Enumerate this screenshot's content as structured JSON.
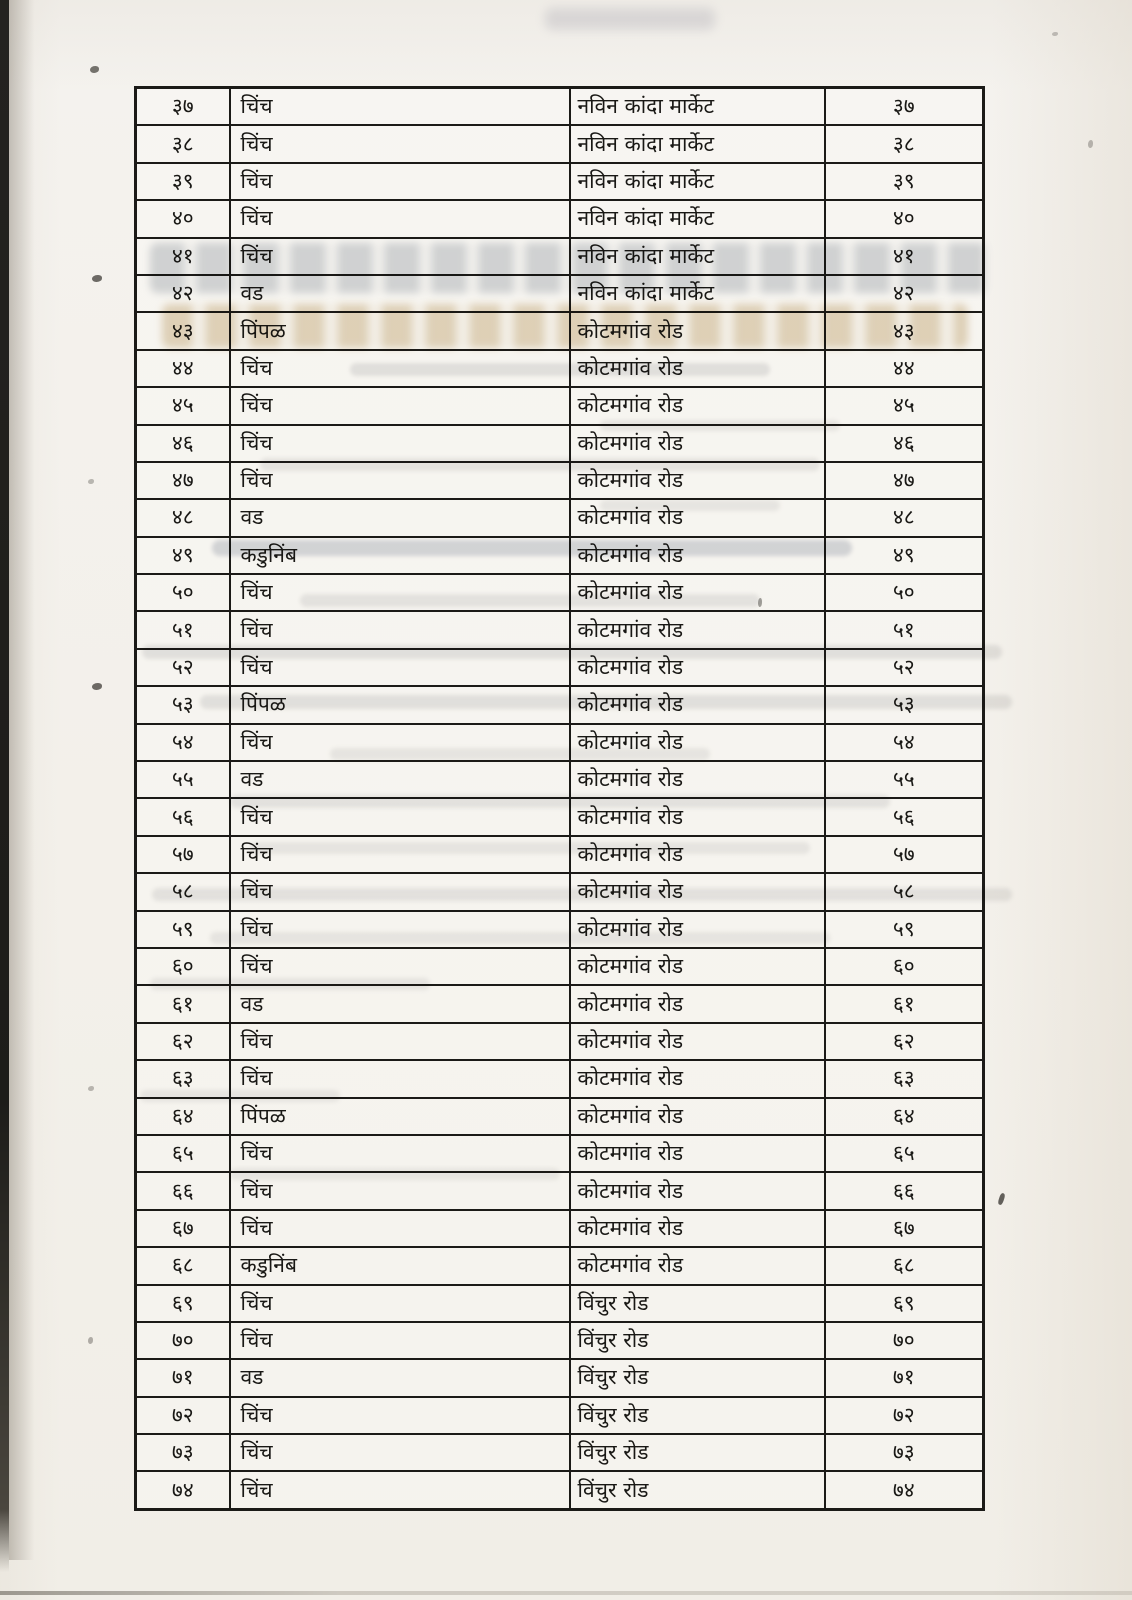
{
  "table": {
    "rows": [
      {
        "sr": "३७",
        "tree": "चिंच",
        "location": "नविन कांदा मार्केट",
        "sr2": "३७"
      },
      {
        "sr": "३८",
        "tree": "चिंच",
        "location": "नविन कांदा मार्केट",
        "sr2": "३८"
      },
      {
        "sr": "३९",
        "tree": "चिंच",
        "location": "नविन कांदा मार्केट",
        "sr2": "३९"
      },
      {
        "sr": "४०",
        "tree": "चिंच",
        "location": "नविन कांदा मार्केट",
        "sr2": "४०"
      },
      {
        "sr": "४१",
        "tree": "चिंच",
        "location": "नविन कांदा मार्केट",
        "sr2": "४१"
      },
      {
        "sr": "४२",
        "tree": "वड",
        "location": "नविन कांदा मार्केट",
        "sr2": "४२"
      },
      {
        "sr": "४३",
        "tree": "पिंपळ",
        "location": "कोटमगांव रोड",
        "sr2": "४३"
      },
      {
        "sr": "४४",
        "tree": "चिंच",
        "location": "कोटमगांव रोड",
        "sr2": "४४"
      },
      {
        "sr": "४५",
        "tree": "चिंच",
        "location": "कोटमगांव रोड",
        "sr2": "४५"
      },
      {
        "sr": "४६",
        "tree": "चिंच",
        "location": "कोटमगांव रोड",
        "sr2": "४६"
      },
      {
        "sr": "४७",
        "tree": "चिंच",
        "location": "कोटमगांव रोड",
        "sr2": "४७"
      },
      {
        "sr": "४८",
        "tree": "वड",
        "location": "कोटमगांव रोड",
        "sr2": "४८"
      },
      {
        "sr": "४९",
        "tree": "कडुनिंब",
        "location": "कोटमगांव रोड",
        "sr2": "४९"
      },
      {
        "sr": "५०",
        "tree": "चिंच",
        "location": "कोटमगांव रोड",
        "sr2": "५०"
      },
      {
        "sr": "५१",
        "tree": "चिंच",
        "location": "कोटमगांव रोड",
        "sr2": "५१"
      },
      {
        "sr": "५२",
        "tree": "चिंच",
        "location": "कोटमगांव रोड",
        "sr2": "५२"
      },
      {
        "sr": "५३",
        "tree": "पिंपळ",
        "location": "कोटमगांव रोड",
        "sr2": "५३"
      },
      {
        "sr": "५४",
        "tree": "चिंच",
        "location": "कोटमगांव रोड",
        "sr2": "५४"
      },
      {
        "sr": "५५",
        "tree": "वड",
        "location": "कोटमगांव रोड",
        "sr2": "५५"
      },
      {
        "sr": "५६",
        "tree": "चिंच",
        "location": "कोटमगांव रोड",
        "sr2": "५६"
      },
      {
        "sr": "५७",
        "tree": "चिंच",
        "location": "कोटमगांव रोड",
        "sr2": "५७"
      },
      {
        "sr": "५८",
        "tree": "चिंच",
        "location": "कोटमगांव रोड",
        "sr2": "५८"
      },
      {
        "sr": "५९",
        "tree": "चिंच",
        "location": "कोटमगांव रोड",
        "sr2": "५९"
      },
      {
        "sr": "६०",
        "tree": "चिंच",
        "location": "कोटमगांव रोड",
        "sr2": "६०"
      },
      {
        "sr": "६१",
        "tree": "वड",
        "location": "कोटमगांव रोड",
        "sr2": "६१"
      },
      {
        "sr": "६२",
        "tree": "चिंच",
        "location": "कोटमगांव रोड",
        "sr2": "६२"
      },
      {
        "sr": "६३",
        "tree": "चिंच",
        "location": "कोटमगांव रोड",
        "sr2": "६३"
      },
      {
        "sr": "६४",
        "tree": "पिंपळ",
        "location": "कोटमगांव रोड",
        "sr2": "६४"
      },
      {
        "sr": "६५",
        "tree": "चिंच",
        "location": "कोटमगांव रोड",
        "sr2": "६५"
      },
      {
        "sr": "६६",
        "tree": "चिंच",
        "location": "कोटमगांव रोड",
        "sr2": "६६"
      },
      {
        "sr": "६७",
        "tree": "चिंच",
        "location": "कोटमगांव रोड",
        "sr2": "६७"
      },
      {
        "sr": "६८",
        "tree": "कडुनिंब",
        "location": "कोटमगांव रोड",
        "sr2": "६८"
      },
      {
        "sr": "६९",
        "tree": "चिंच",
        "location": "विंचुर रोड",
        "sr2": "६९"
      },
      {
        "sr": "७०",
        "tree": "चिंच",
        "location": "विंचुर रोड",
        "sr2": "७०"
      },
      {
        "sr": "७१",
        "tree": "वड",
        "location": "विंचुर रोड",
        "sr2": "७१"
      },
      {
        "sr": "७२",
        "tree": "चिंच",
        "location": "विंचुर रोड",
        "sr2": "७२"
      },
      {
        "sr": "७३",
        "tree": "चिंच",
        "location": "विंचुर रोड",
        "sr2": "७३"
      },
      {
        "sr": "७४",
        "tree": "चिंच",
        "location": "विंचुर रोड",
        "sr2": "७४"
      }
    ]
  }
}
